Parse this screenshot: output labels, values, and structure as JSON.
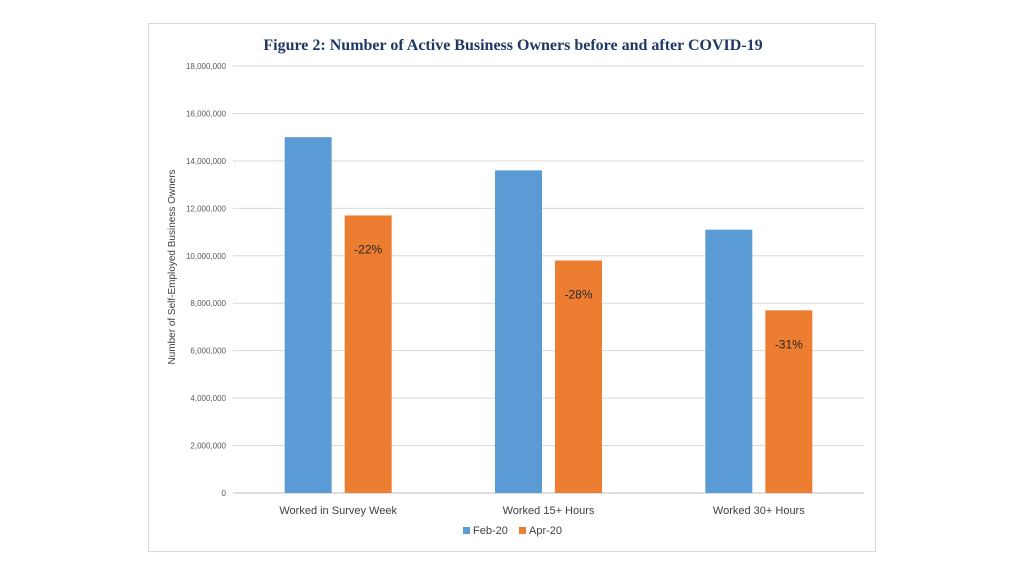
{
  "chart_data": {
    "type": "bar",
    "title": "Figure 2: Number of Active Business Owners before and after COVID-19",
    "xlabel": "",
    "ylabel": "Number of Self-Employed Business Owners",
    "ylim": [
      0,
      18000000
    ],
    "yticks": [
      0,
      2000000,
      4000000,
      6000000,
      8000000,
      10000000,
      12000000,
      14000000,
      16000000,
      18000000
    ],
    "ytick_labels": [
      "0",
      "2,000,000",
      "4,000,000",
      "6,000,000",
      "8,000,000",
      "10,000,000",
      "12,000,000",
      "14,000,000",
      "16,000,000",
      "18,000,000"
    ],
    "categories": [
      "Worked in Survey Week",
      "Worked 15+ Hours",
      "Worked 30+ Hours"
    ],
    "series": [
      {
        "name": "Feb-20",
        "color": "#5b9bd5",
        "values": [
          15000000,
          13600000,
          11100000
        ]
      },
      {
        "name": "Apr-20",
        "color": "#ed7d31",
        "values": [
          11700000,
          9800000,
          7700000
        ]
      }
    ],
    "annotations": [
      "-22%",
      "-28%",
      "-31%"
    ],
    "grid": true,
    "legend_position": "bottom"
  }
}
